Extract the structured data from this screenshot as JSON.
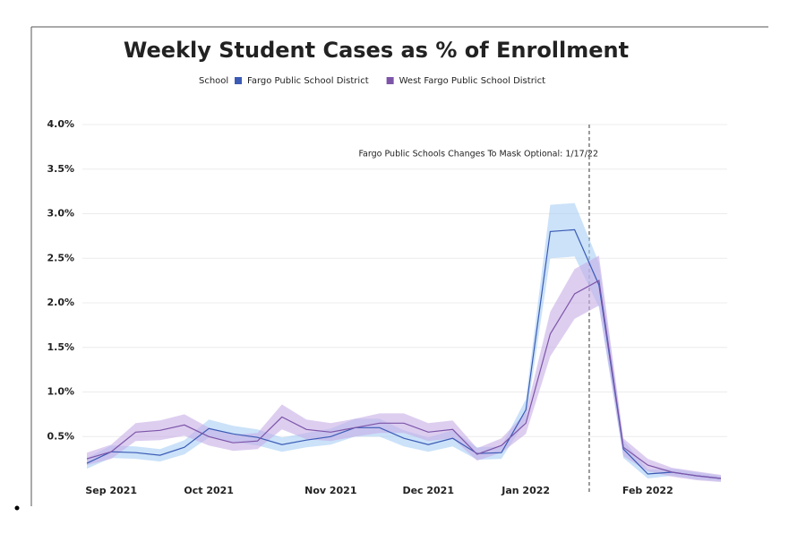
{
  "chart_data": {
    "type": "line",
    "title": "Weekly Student Cases as % of Enrollment",
    "legend_title": "School",
    "annotation": "Fargo Public Schools Changes To Mask Optional: 1/17/22",
    "categories": [
      null,
      "Sep 2021",
      null,
      null,
      null,
      "Oct 2021",
      null,
      null,
      null,
      null,
      "Nov 2021",
      null,
      null,
      null,
      "Dec 2021",
      null,
      null,
      null,
      "Jan 2022",
      null,
      null,
      null,
      null,
      "Feb 2022",
      null,
      null,
      null
    ],
    "series": [
      {
        "name": "Fargo Public School District",
        "color": "#3b5bb5",
        "band_color": "#a9cff5",
        "values": [
          0.2,
          0.33,
          0.32,
          0.29,
          0.38,
          0.59,
          0.53,
          0.49,
          0.41,
          0.46,
          0.5,
          0.6,
          0.6,
          0.48,
          0.41,
          0.48,
          0.31,
          0.32,
          0.8,
          2.8,
          2.82,
          2.2,
          0.36,
          0.08,
          0.1,
          0.06,
          0.03
        ],
        "error": [
          0.06,
          0.07,
          0.07,
          0.07,
          0.08,
          0.1,
          0.09,
          0.09,
          0.08,
          0.08,
          0.09,
          0.1,
          0.1,
          0.09,
          0.08,
          0.09,
          0.07,
          0.07,
          0.12,
          0.3,
          0.3,
          0.25,
          0.1,
          0.05,
          0.04,
          0.04,
          0.03
        ]
      },
      {
        "name": "West Fargo Public School District",
        "color": "#7d55a8",
        "band_color": "#c6aee6",
        "values": [
          0.25,
          0.33,
          0.55,
          0.57,
          0.63,
          0.5,
          0.43,
          0.45,
          0.72,
          0.58,
          0.55,
          0.6,
          0.65,
          0.65,
          0.55,
          0.58,
          0.3,
          0.4,
          0.65,
          1.65,
          2.1,
          2.25,
          0.38,
          0.18,
          0.1,
          0.06,
          0.03
        ],
        "error": [
          0.07,
          0.08,
          0.1,
          0.11,
          0.12,
          0.1,
          0.09,
          0.09,
          0.14,
          0.11,
          0.1,
          0.1,
          0.11,
          0.11,
          0.1,
          0.1,
          0.07,
          0.08,
          0.12,
          0.25,
          0.28,
          0.28,
          0.1,
          0.07,
          0.05,
          0.05,
          0.04
        ]
      }
    ],
    "ylim": [
      0,
      4
    ],
    "yticks": [
      {
        "value": 0.5,
        "label": "0.5%"
      },
      {
        "value": 1,
        "label": "1.0%"
      },
      {
        "value": 1.5,
        "label": "1.5%"
      },
      {
        "value": 2,
        "label": "2.0%"
      },
      {
        "value": 2.5,
        "label": "2.5%"
      },
      {
        "value": 3,
        "label": "3.0%"
      },
      {
        "value": 3.5,
        "label": "3.5%"
      },
      {
        "value": 4,
        "label": "4.0%"
      }
    ],
    "grid": true
  }
}
